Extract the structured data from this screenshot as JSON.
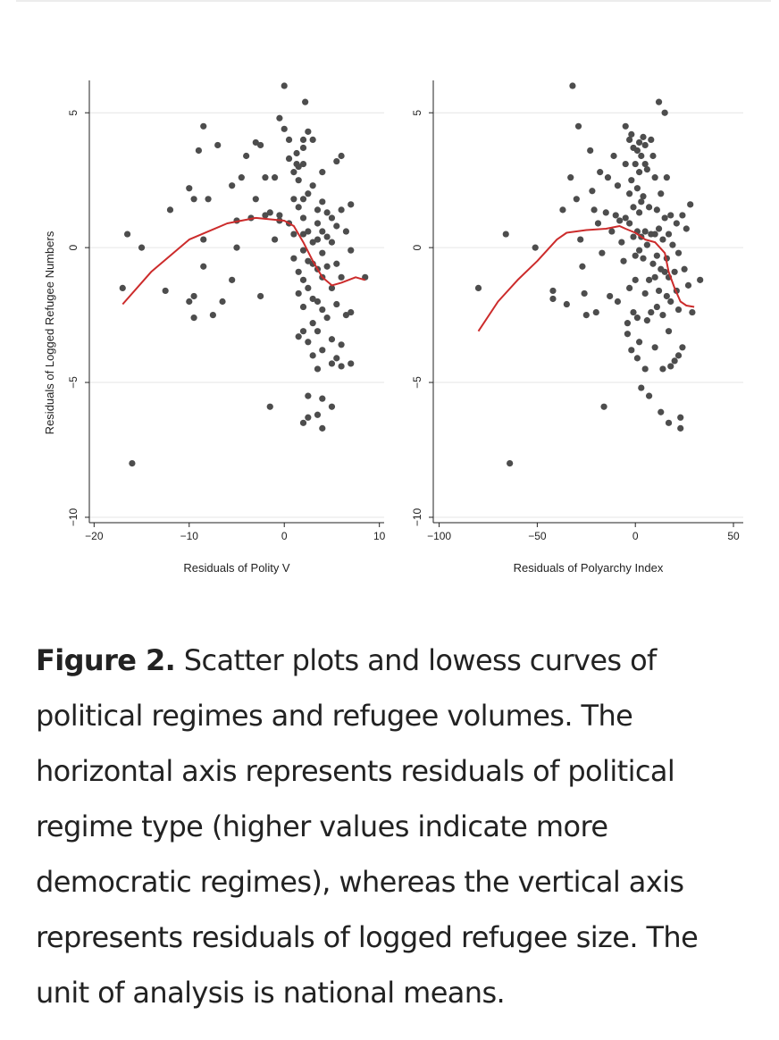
{
  "chart_data": [
    {
      "type": "scatter",
      "title": "",
      "xlabel": "Residuals of Polity V",
      "ylabel": "Residuals of Logged Refugee Numbers",
      "xlim": [
        -20.5,
        10.5
      ],
      "ylim": [
        -10.2,
        6.2
      ],
      "xticks": [
        -20,
        -10,
        0,
        10
      ],
      "xtick_labels": [
        "−20",
        "−10",
        "0",
        "10"
      ],
      "yticks": [
        -10,
        -5,
        0,
        5
      ],
      "ytick_labels": [
        "−10",
        "−5",
        "0",
        "5"
      ],
      "gridlines": "horizontal",
      "points": [
        [
          -16.5,
          0.5
        ],
        [
          -17,
          -1.5
        ],
        [
          -15,
          0
        ],
        [
          -16,
          -8
        ],
        [
          -12,
          1.4
        ],
        [
          -12.5,
          -1.6
        ],
        [
          -10,
          2.2
        ],
        [
          -9.5,
          1.8
        ],
        [
          -10,
          -2
        ],
        [
          -9.5,
          -1.8
        ],
        [
          -9.5,
          -2.6
        ],
        [
          -8.5,
          4.5
        ],
        [
          -8.5,
          0.3
        ],
        [
          -8.5,
          -0.7
        ],
        [
          -8,
          1.8
        ],
        [
          -9,
          3.6
        ],
        [
          -7.5,
          -2.5
        ],
        [
          -7,
          3.8
        ],
        [
          -6.5,
          -2
        ],
        [
          -5.5,
          2.3
        ],
        [
          -5.5,
          -1.2
        ],
        [
          -5,
          1
        ],
        [
          -5,
          0
        ],
        [
          -4.5,
          2.6
        ],
        [
          -4,
          3.4
        ],
        [
          -3.5,
          1.1
        ],
        [
          -3,
          3.9
        ],
        [
          -3,
          1.8
        ],
        [
          -2.5,
          3.8
        ],
        [
          -2.5,
          -1.8
        ],
        [
          -2,
          2.6
        ],
        [
          -2,
          1.2
        ],
        [
          -1.5,
          1.3
        ],
        [
          -1.5,
          -5.9
        ],
        [
          -1,
          2.6
        ],
        [
          -1,
          0.3
        ],
        [
          -0.5,
          1
        ],
        [
          -0.5,
          1.2
        ],
        [
          -0.5,
          4.8
        ],
        [
          0,
          6
        ],
        [
          0,
          4.4
        ],
        [
          0.5,
          3.3
        ],
        [
          0.5,
          0.9
        ],
        [
          0.5,
          4
        ],
        [
          1,
          2.8
        ],
        [
          1,
          1.8
        ],
        [
          1,
          0.5
        ],
        [
          1,
          -0.4
        ],
        [
          1.3,
          3.5
        ],
        [
          1.3,
          3.1
        ],
        [
          1.5,
          3
        ],
        [
          1.5,
          2.5
        ],
        [
          1.5,
          1.5
        ],
        [
          1.5,
          -0.9
        ],
        [
          1.5,
          -1.7
        ],
        [
          1.5,
          -3.3
        ],
        [
          2,
          4
        ],
        [
          2,
          3.7
        ],
        [
          2,
          3.1
        ],
        [
          2,
          1.8
        ],
        [
          2,
          1.1
        ],
        [
          2,
          0.5
        ],
        [
          2,
          -0.1
        ],
        [
          2,
          -1.2
        ],
        [
          2,
          -2.2
        ],
        [
          2,
          -3.1
        ],
        [
          2,
          -6.5
        ],
        [
          2.2,
          5.4
        ],
        [
          2.5,
          4.3
        ],
        [
          2.5,
          2
        ],
        [
          2.5,
          0.6
        ],
        [
          2.5,
          -0.5
        ],
        [
          2.5,
          -1.5
        ],
        [
          2.5,
          -3.5
        ],
        [
          2.5,
          -5.5
        ],
        [
          2.5,
          -6.3
        ],
        [
          3,
          4
        ],
        [
          3,
          2.3
        ],
        [
          3,
          0.2
        ],
        [
          3,
          -0.6
        ],
        [
          3,
          -1.9
        ],
        [
          3,
          -2.8
        ],
        [
          3,
          -4
        ],
        [
          3.5,
          1.4
        ],
        [
          3.5,
          0.9
        ],
        [
          3.5,
          0.3
        ],
        [
          3.5,
          -0.8
        ],
        [
          3.5,
          -2
        ],
        [
          3.5,
          -3.1
        ],
        [
          3.5,
          -4.5
        ],
        [
          3.5,
          -6.2
        ],
        [
          4,
          2.8
        ],
        [
          4,
          1.7
        ],
        [
          4,
          0.6
        ],
        [
          4,
          -0.2
        ],
        [
          4,
          -1.1
        ],
        [
          4,
          -2.3
        ],
        [
          4,
          -3.8
        ],
        [
          4,
          -5.6
        ],
        [
          4,
          -6.7
        ],
        [
          4.5,
          1.3
        ],
        [
          4.5,
          0.4
        ],
        [
          4.5,
          -0.7
        ],
        [
          4.5,
          -2.6
        ],
        [
          5,
          1.1
        ],
        [
          5,
          0.2
        ],
        [
          5,
          -1.5
        ],
        [
          5,
          -3.4
        ],
        [
          5,
          -4.3
        ],
        [
          5,
          -5.9
        ],
        [
          5.5,
          3.2
        ],
        [
          5.5,
          0.8
        ],
        [
          5.5,
          -0.6
        ],
        [
          5.5,
          -2.1
        ],
        [
          5.5,
          -4.1
        ],
        [
          6,
          3.4
        ],
        [
          6,
          1.4
        ],
        [
          6,
          -1.1
        ],
        [
          6,
          -3.6
        ],
        [
          6,
          -4.4
        ],
        [
          6.5,
          0.6
        ],
        [
          6.5,
          -2.5
        ],
        [
          7,
          1.6
        ],
        [
          7,
          -0.1
        ],
        [
          7,
          -2.4
        ],
        [
          7,
          -4.3
        ],
        [
          8.5,
          -1.1
        ]
      ],
      "lowess": [
        [
          -17,
          -2.1
        ],
        [
          -14,
          -0.9
        ],
        [
          -10,
          0.3
        ],
        [
          -6,
          0.9
        ],
        [
          -3,
          1.1
        ],
        [
          0,
          1
        ],
        [
          1,
          0.8
        ],
        [
          2,
          0.2
        ],
        [
          3,
          -0.5
        ],
        [
          4,
          -1.1
        ],
        [
          5,
          -1.4
        ],
        [
          6,
          -1.3
        ],
        [
          7.5,
          -1.1
        ],
        [
          8.5,
          -1.2
        ]
      ]
    },
    {
      "type": "scatter",
      "title": "",
      "xlabel": "Residuals of Polyarchy Index",
      "ylabel": "",
      "xlim": [
        -103,
        55
      ],
      "ylim": [
        -10.2,
        6.2
      ],
      "xticks": [
        -100,
        -50,
        0,
        50
      ],
      "xtick_labels": [
        "−100",
        "−50",
        "0",
        "50"
      ],
      "yticks": [
        -10,
        -5,
        0,
        5
      ],
      "ytick_labels": [
        "−10",
        "−5",
        "0",
        "5"
      ],
      "gridlines": "horizontal",
      "points": [
        [
          -80,
          -1.5
        ],
        [
          -66,
          0.5
        ],
        [
          -64,
          -8
        ],
        [
          -51,
          0
        ],
        [
          -42,
          -1.6
        ],
        [
          -42,
          -1.9
        ],
        [
          -37,
          1.4
        ],
        [
          -35,
          -2.1
        ],
        [
          -33,
          2.6
        ],
        [
          -32,
          6
        ],
        [
          -30,
          1.8
        ],
        [
          -29,
          4.5
        ],
        [
          -28,
          0.3
        ],
        [
          -27,
          -0.7
        ],
        [
          -26,
          -1.7
        ],
        [
          -25,
          -2.5
        ],
        [
          -23,
          3.6
        ],
        [
          -22,
          2.1
        ],
        [
          -21,
          1.4
        ],
        [
          -20,
          -2.4
        ],
        [
          -19,
          0.9
        ],
        [
          -18,
          2.8
        ],
        [
          -17,
          -0.2
        ],
        [
          -16,
          -5.9
        ],
        [
          -15,
          1.3
        ],
        [
          -14,
          2.6
        ],
        [
          -13,
          -1.8
        ],
        [
          -12,
          0.6
        ],
        [
          -11,
          3.4
        ],
        [
          -10,
          1.2
        ],
        [
          -9,
          2.3
        ],
        [
          -9,
          -2
        ],
        [
          -8,
          1
        ],
        [
          -7,
          0.2
        ],
        [
          -6,
          -0.5
        ],
        [
          -5,
          4.5
        ],
        [
          -5,
          3.1
        ],
        [
          -5,
          1.1
        ],
        [
          -4,
          -2.8
        ],
        [
          -4,
          -3.2
        ],
        [
          -3,
          4
        ],
        [
          -3,
          2
        ],
        [
          -3,
          0.9
        ],
        [
          -3,
          -1.5
        ],
        [
          -2,
          4.2
        ],
        [
          -2,
          2.5
        ],
        [
          -2,
          -3.8
        ],
        [
          -1,
          3.7
        ],
        [
          -1,
          1.5
        ],
        [
          -1,
          0.4
        ],
        [
          -1,
          -2.4
        ],
        [
          0,
          3.1
        ],
        [
          0,
          -0.3
        ],
        [
          0,
          -1.2
        ],
        [
          1,
          3.6
        ],
        [
          1,
          2.2
        ],
        [
          1,
          0.6
        ],
        [
          1,
          -2.6
        ],
        [
          1,
          -4.1
        ],
        [
          2,
          3.9
        ],
        [
          2,
          2.8
        ],
        [
          2,
          1.3
        ],
        [
          2,
          -0.1
        ],
        [
          2,
          -3.5
        ],
        [
          3,
          3.4
        ],
        [
          3,
          1.7
        ],
        [
          3,
          0.4
        ],
        [
          3,
          -5.2
        ],
        [
          4,
          4.1
        ],
        [
          4,
          1.9
        ],
        [
          4,
          -0.4
        ],
        [
          5,
          3.8
        ],
        [
          5,
          3.1
        ],
        [
          5,
          0.6
        ],
        [
          5,
          -1.7
        ],
        [
          5,
          -4.5
        ],
        [
          6,
          2.9
        ],
        [
          6,
          0.1
        ],
        [
          6,
          -2.7
        ],
        [
          7,
          1.5
        ],
        [
          7,
          -1.2
        ],
        [
          7,
          -5.5
        ],
        [
          8,
          4
        ],
        [
          8,
          0.5
        ],
        [
          8,
          -2.4
        ],
        [
          9,
          3.4
        ],
        [
          9,
          -0.6
        ],
        [
          10,
          2.6
        ],
        [
          10,
          0.5
        ],
        [
          10,
          -1.1
        ],
        [
          10,
          -3.7
        ],
        [
          11,
          1.4
        ],
        [
          11,
          -0.3
        ],
        [
          11,
          -2.2
        ],
        [
          12,
          5.4
        ],
        [
          12,
          0.7
        ],
        [
          12,
          -1.6
        ],
        [
          13,
          2
        ],
        [
          13,
          -0.8
        ],
        [
          13,
          -6.1
        ],
        [
          14,
          0.3
        ],
        [
          14,
          -2.5
        ],
        [
          14,
          -4.5
        ],
        [
          15,
          5
        ],
        [
          15,
          1.1
        ],
        [
          15,
          -0.9
        ],
        [
          16,
          2.6
        ],
        [
          16,
          -0.4
        ],
        [
          16,
          -1.8
        ],
        [
          17,
          0.5
        ],
        [
          17,
          -1.1
        ],
        [
          17,
          -3.1
        ],
        [
          17,
          -6.5
        ],
        [
          18,
          1.2
        ],
        [
          18,
          -2
        ],
        [
          18,
          -4.4
        ],
        [
          19,
          0.1
        ],
        [
          20,
          -0.9
        ],
        [
          20,
          -4.2
        ],
        [
          21,
          0.9
        ],
        [
          21,
          -1.6
        ],
        [
          22,
          -0.2
        ],
        [
          22,
          -2.3
        ],
        [
          22,
          -4
        ],
        [
          23,
          -6.3
        ],
        [
          23,
          -6.7
        ],
        [
          24,
          1.2
        ],
        [
          24,
          -3.7
        ],
        [
          25,
          -0.8
        ],
        [
          26,
          0.7
        ],
        [
          27,
          -1.4
        ],
        [
          28,
          1.6
        ],
        [
          29,
          -2.4
        ],
        [
          33,
          -1.2
        ]
      ],
      "lowess": [
        [
          -80,
          -3.1
        ],
        [
          -70,
          -2
        ],
        [
          -60,
          -1.2
        ],
        [
          -50,
          -0.5
        ],
        [
          -40,
          0.3
        ],
        [
          -35,
          0.55
        ],
        [
          -25,
          0.65
        ],
        [
          -15,
          0.7
        ],
        [
          -8,
          0.8
        ],
        [
          -5,
          0.7
        ],
        [
          0,
          0.55
        ],
        [
          5,
          0.3
        ],
        [
          10,
          0.2
        ],
        [
          15,
          -0.2
        ],
        [
          17,
          -0.9
        ],
        [
          20,
          -1.5
        ],
        [
          23,
          -2
        ],
        [
          26,
          -2.15
        ],
        [
          30,
          -2.2
        ]
      ]
    }
  ],
  "colors": {
    "points": "#4d4d4d",
    "lowess": "#cc2b2b",
    "grid": "#e6e6e6",
    "axis": "#222222"
  },
  "caption": {
    "label": "Figure 2.",
    "text": "Scatter plots and lowess curves of political regimes and refugee volumes. The horizontal axis represents residuals of political regime type (higher values indicate more democratic regimes), whereas the vertical axis represents residuals of logged refugee size. The unit of analysis is national means."
  }
}
